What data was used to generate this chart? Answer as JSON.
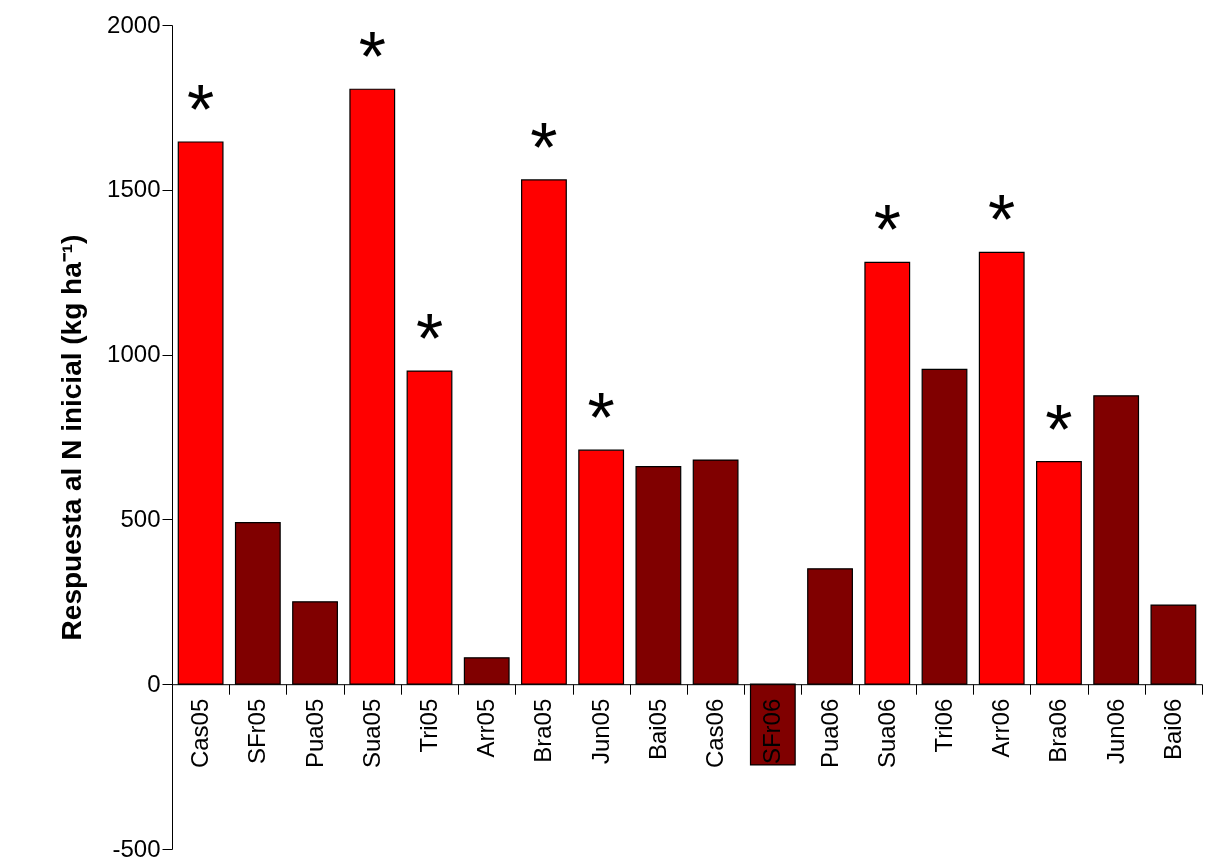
{
  "chart_data": {
    "type": "bar",
    "ylabel": "Respuesta al N inicial (kg ha⁻¹)",
    "categories": [
      "Cas05",
      "SFr05",
      "Pua05",
      "Sua05",
      "Tri05",
      "Arr05",
      "Bra05",
      "Jun05",
      "Bai05",
      "Cas06",
      "SFr06",
      "Pua06",
      "Sua06",
      "Tri06",
      "Arr06",
      "Bra06",
      "Jun06",
      "Bai06"
    ],
    "values": [
      1645,
      490,
      250,
      1805,
      950,
      80,
      1530,
      710,
      660,
      680,
      -245,
      350,
      1280,
      955,
      1310,
      675,
      875,
      240
    ],
    "colors": [
      "#ff0000",
      "#800000",
      "#800000",
      "#ff0000",
      "#ff0000",
      "#800000",
      "#ff0000",
      "#ff0000",
      "#800000",
      "#800000",
      "#800000",
      "#800000",
      "#ff0000",
      "#800000",
      "#ff0000",
      "#ff0000",
      "#800000",
      "#800000"
    ],
    "ylim": [
      -500,
      2000
    ],
    "yticks": [
      -500,
      0,
      500,
      1000,
      1500,
      2000
    ],
    "grid": false,
    "annotations": [
      {
        "text": "*",
        "x": "Cas05",
        "y": 1645
      },
      {
        "text": "*",
        "x": "Sua05",
        "y": 1805
      },
      {
        "text": "*",
        "x": "Tri05",
        "y": 950
      },
      {
        "text": "*",
        "x": "Bra05",
        "y": 1530
      },
      {
        "text": "*",
        "x": "Jun05",
        "y": 710
      },
      {
        "text": "*",
        "x": "Sua06",
        "y": 1280
      },
      {
        "text": "*",
        "x": "Arr06",
        "y": 1310
      },
      {
        "text": "*",
        "x": "Bra06",
        "y": 675
      }
    ]
  }
}
